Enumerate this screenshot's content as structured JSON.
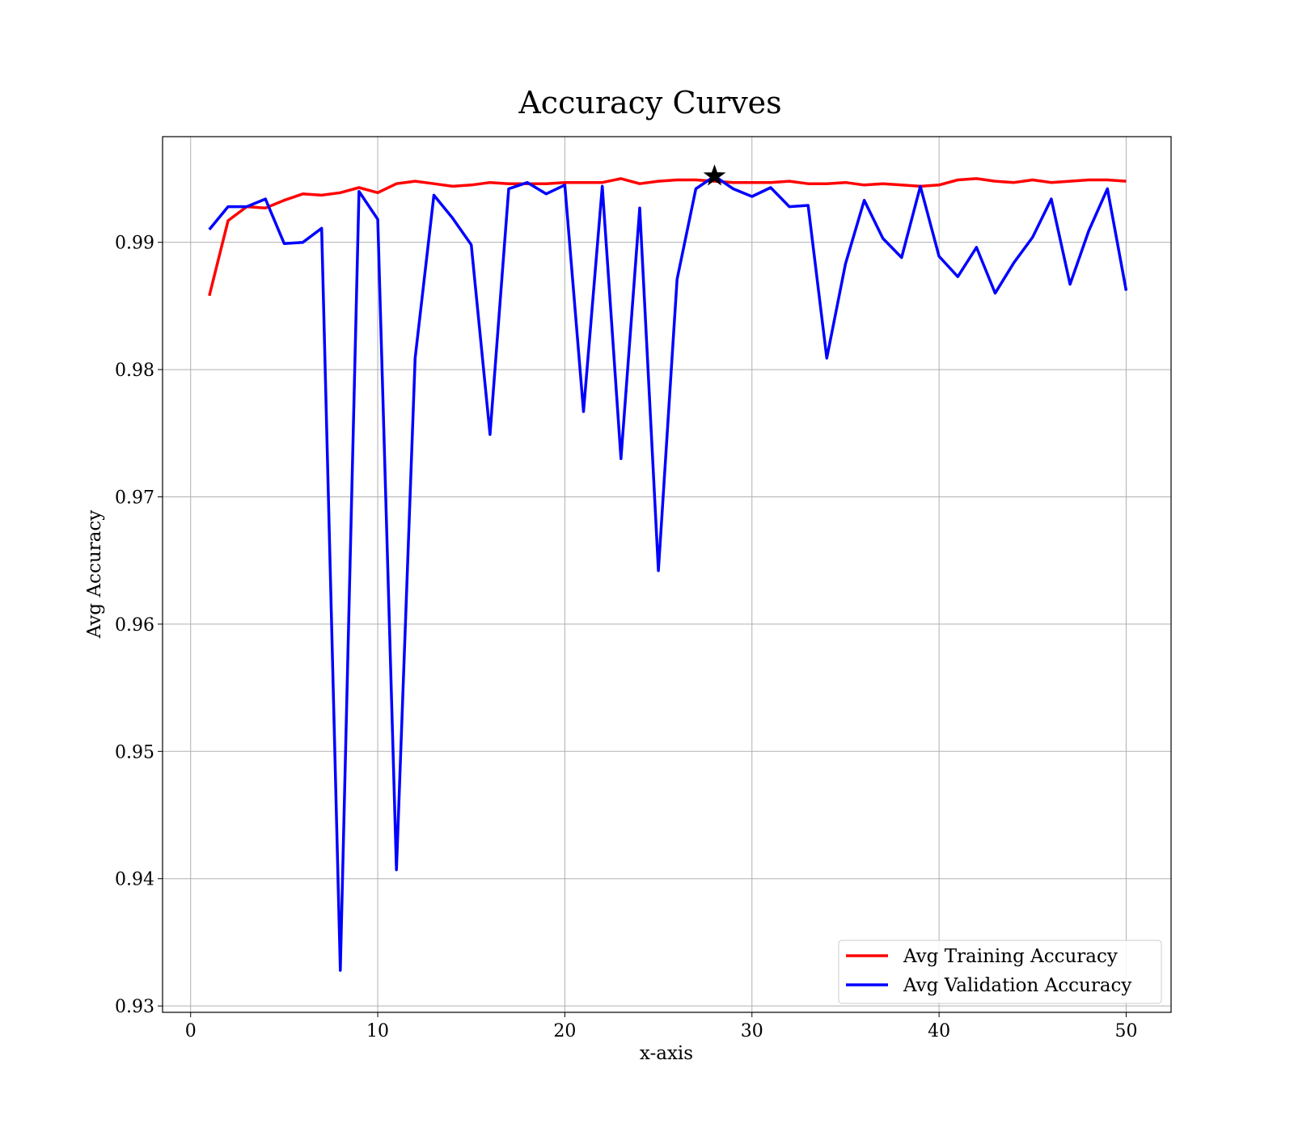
{
  "chart_data": {
    "type": "line",
    "title": "Accuracy Curves",
    "xlabel": "x-axis",
    "ylabel": "Avg Accuracy",
    "xlim": [
      -1.5,
      52.4
    ],
    "ylim": [
      0.9295,
      0.9983
    ],
    "xticks": [
      0,
      10,
      20,
      30,
      40,
      50
    ],
    "yticks": [
      0.93,
      0.94,
      0.95,
      0.96,
      0.97,
      0.98,
      0.99
    ],
    "ytick_labels": [
      "0.93",
      "0.94",
      "0.95",
      "0.96",
      "0.97",
      "0.98",
      "0.99"
    ],
    "grid": true,
    "legend_position": "bottom-right",
    "x": [
      1,
      2,
      3,
      4,
      5,
      6,
      7,
      8,
      9,
      10,
      11,
      12,
      13,
      14,
      15,
      16,
      17,
      18,
      19,
      20,
      21,
      22,
      23,
      24,
      25,
      26,
      27,
      28,
      29,
      30,
      31,
      32,
      33,
      34,
      35,
      36,
      37,
      38,
      39,
      40,
      41,
      42,
      43,
      44,
      45,
      46,
      47,
      48,
      49,
      50
    ],
    "series": [
      {
        "name": "Avg Training Accuracy",
        "color": "#ff0000",
        "values": [
          0.9858,
          0.9917,
          0.9928,
          0.9927,
          0.9933,
          0.9938,
          0.9937,
          0.9939,
          0.9943,
          0.9939,
          0.9946,
          0.9948,
          0.9946,
          0.9944,
          0.9945,
          0.9947,
          0.9946,
          0.9946,
          0.9946,
          0.9947,
          0.9947,
          0.9947,
          0.995,
          0.9946,
          0.9948,
          0.9949,
          0.9949,
          0.9948,
          0.9947,
          0.9947,
          0.9947,
          0.9948,
          0.9946,
          0.9946,
          0.9947,
          0.9945,
          0.9946,
          0.9945,
          0.9944,
          0.9945,
          0.9949,
          0.995,
          0.9948,
          0.9947,
          0.9949,
          0.9947,
          0.9948,
          0.9949,
          0.9949,
          0.9948
        ]
      },
      {
        "name": "Avg Validation Accuracy",
        "color": "#0000ff",
        "values": [
          0.991,
          0.9928,
          0.9928,
          0.9934,
          0.9899,
          0.99,
          0.9911,
          0.9328,
          0.994,
          0.9918,
          0.9407,
          0.9809,
          0.9937,
          0.9919,
          0.9898,
          0.9749,
          0.9942,
          0.9947,
          0.9938,
          0.9945,
          0.9767,
          0.9944,
          0.973,
          0.9927,
          0.9642,
          0.9871,
          0.9942,
          0.9952,
          0.9942,
          0.9936,
          0.9943,
          0.9928,
          0.9929,
          0.9809,
          0.9883,
          0.9933,
          0.9903,
          0.9888,
          0.9944,
          0.9889,
          0.9873,
          0.9896,
          0.986,
          0.9884,
          0.9904,
          0.9934,
          0.9867,
          0.9909,
          0.9942,
          0.9862
        ]
      }
    ],
    "markers": [
      {
        "shape": "star",
        "x": 28,
        "y": 0.9952,
        "color": "#000000"
      }
    ]
  }
}
